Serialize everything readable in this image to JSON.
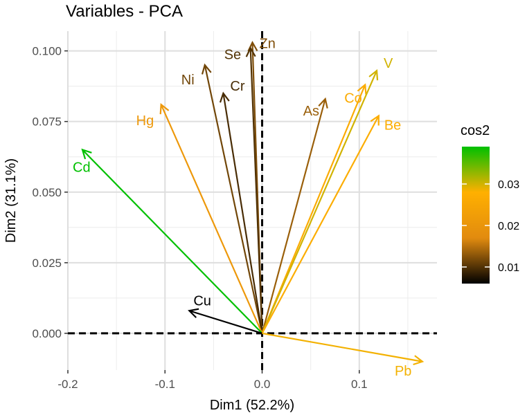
{
  "chart_data": {
    "type": "pca-variables",
    "title": "Variables - PCA",
    "xlabel": "Dim1 (52.2%)",
    "ylabel": "Dim2 (31.1%)",
    "xlim": [
      -0.2,
      0.18
    ],
    "ylim": [
      -0.013,
      0.107
    ],
    "x_ticks": [
      -0.2,
      -0.1,
      0.0,
      0.1
    ],
    "x_tick_labels": [
      "-0.2",
      "-0.1",
      "0.0",
      "0.1"
    ],
    "y_ticks": [
      0.0,
      0.025,
      0.05,
      0.075,
      0.1
    ],
    "y_tick_labels": [
      "0.000",
      "0.025",
      "0.050",
      "0.075",
      "0.100"
    ],
    "grid": true,
    "legend": {
      "title": "cos2",
      "placement": "right",
      "range": [
        0.006,
        0.039
      ],
      "ticks": [
        0.01,
        0.02,
        0.03
      ],
      "tick_labels": [
        "0.01",
        "0.02",
        "0.03"
      ],
      "colors": [
        "#000000",
        "#e28b0f",
        "#ffb000",
        "#00c000"
      ]
    },
    "variables": [
      {
        "name": "Zn",
        "x": -0.01,
        "y": 0.103,
        "cos2": 0.0122
      },
      {
        "name": "Se",
        "x": -0.012,
        "y": 0.101,
        "cos2": 0.01
      },
      {
        "name": "Ni",
        "x": -0.059,
        "y": 0.095,
        "cos2": 0.0115
      },
      {
        "name": "Cr",
        "x": -0.04,
        "y": 0.085,
        "cos2": 0.0095
      },
      {
        "name": "Hg",
        "x": -0.104,
        "y": 0.081,
        "cos2": 0.021
      },
      {
        "name": "Cd",
        "x": -0.185,
        "y": 0.065,
        "cos2": 0.039
      },
      {
        "name": "As",
        "x": 0.065,
        "y": 0.083,
        "cos2": 0.0135
      },
      {
        "name": "Co",
        "x": 0.106,
        "y": 0.088,
        "cos2": 0.0265
      },
      {
        "name": "V",
        "x": 0.118,
        "y": 0.093,
        "cos2": 0.03
      },
      {
        "name": "Be",
        "x": 0.12,
        "y": 0.077,
        "cos2": 0.027
      },
      {
        "name": "Cu",
        "x": -0.075,
        "y": 0.008,
        "cos2": 0.006
      },
      {
        "name": "Pb",
        "x": 0.165,
        "y": -0.01,
        "cos2": 0.0285
      }
    ]
  }
}
